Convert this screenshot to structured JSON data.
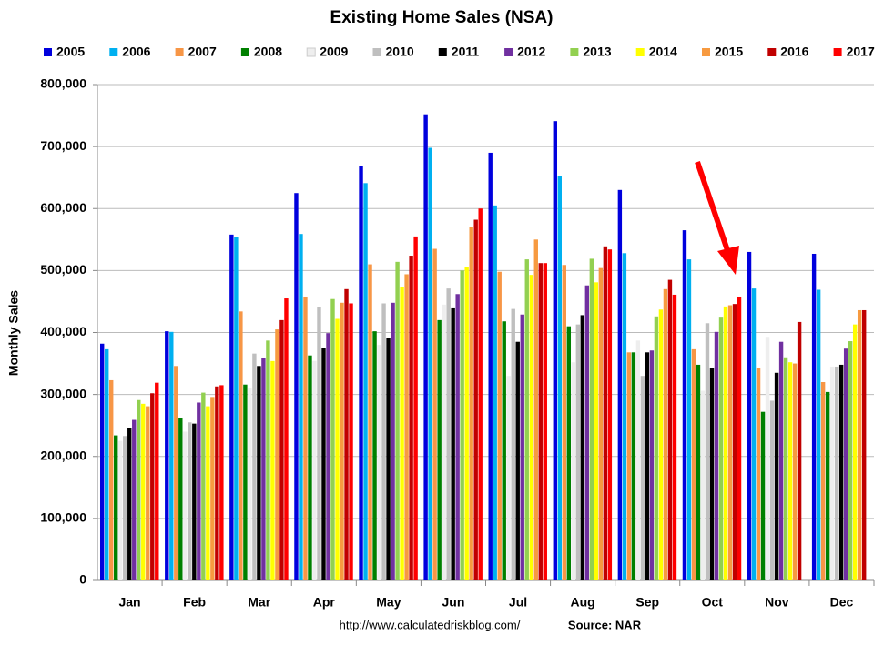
{
  "chart_data": {
    "type": "bar",
    "title": "Existing Home Sales (NSA)",
    "y_label": "Monthly Sales",
    "source_url": "http://www.calculatedriskblog.com/",
    "source": "Source: NAR",
    "categories": [
      "Jan",
      "Feb",
      "Mar",
      "Apr",
      "May",
      "Jun",
      "Jul",
      "Aug",
      "Sep",
      "Oct",
      "Nov",
      "Dec"
    ],
    "ylim": [
      0,
      800000
    ],
    "yticks": [
      0,
      {
        "value": 100000,
        "label": "100,000"
      },
      {
        "value": 200000,
        "label": "200,000"
      },
      {
        "value": 300000,
        "label": "300,000"
      },
      {
        "value": 400000,
        "label": "400,000"
      },
      {
        "value": 500000,
        "label": "500,000"
      },
      {
        "value": 600000,
        "label": "600,000"
      },
      {
        "value": 700000,
        "label": "700,000"
      },
      {
        "value": 800000,
        "label": "800,000"
      }
    ],
    "grid": true,
    "series": [
      {
        "name": "2005",
        "color": "#0000dd",
        "values": [
          382000,
          402000,
          558000,
          625000,
          668000,
          752000,
          690000,
          741000,
          630000,
          565000,
          530000,
          527000
        ]
      },
      {
        "name": "2006",
        "color": "#00b0f0",
        "values": [
          373000,
          401000,
          554000,
          559000,
          641000,
          698000,
          605000,
          653000,
          528000,
          518000,
          471000,
          469000
        ]
      },
      {
        "name": "2007",
        "color": "#f79646",
        "values": [
          323000,
          346000,
          434000,
          458000,
          510000,
          535000,
          498000,
          509000,
          368000,
          373000,
          343000,
          320000
        ]
      },
      {
        "name": "2008",
        "color": "#008000",
        "values": [
          234000,
          262000,
          316000,
          363000,
          402000,
          420000,
          418000,
          410000,
          368000,
          348000,
          272000,
          304000
        ]
      },
      {
        "name": "2009",
        "color": "#eeeeee",
        "values": [
          225000,
          240000,
          310000,
          354000,
          380000,
          445000,
          330000,
          352000,
          387000,
          306000,
          393000,
          345000
        ]
      },
      {
        "name": "2010",
        "color": "#bfbfbf",
        "values": [
          233000,
          255000,
          366000,
          441000,
          447000,
          471000,
          438000,
          413000,
          330000,
          415000,
          290000,
          345000
        ]
      },
      {
        "name": "2011",
        "color": "#000000",
        "values": [
          246000,
          253000,
          346000,
          375000,
          391000,
          439000,
          385000,
          428000,
          368000,
          342000,
          335000,
          348000
        ]
      },
      {
        "name": "2012",
        "color": "#7030a0",
        "values": [
          259000,
          287000,
          359000,
          399000,
          448000,
          462000,
          429000,
          476000,
          371000,
          401000,
          385000,
          374000
        ]
      },
      {
        "name": "2013",
        "color": "#92d050",
        "values": [
          291000,
          303000,
          387000,
          454000,
          514000,
          500000,
          518000,
          519000,
          426000,
          424000,
          360000,
          386000
        ]
      },
      {
        "name": "2014",
        "color": "#ffff00",
        "values": [
          285000,
          281000,
          354000,
          422000,
          474000,
          505000,
          493000,
          481000,
          437000,
          442000,
          352000,
          413000
        ]
      },
      {
        "name": "2015",
        "color": "#f79a40",
        "values": [
          281000,
          296000,
          405000,
          448000,
          494000,
          571000,
          550000,
          504000,
          470000,
          444000,
          350000,
          436000
        ]
      },
      {
        "name": "2016",
        "color": "#c00000",
        "values": [
          302000,
          313000,
          420000,
          470000,
          524000,
          582000,
          512000,
          539000,
          485000,
          446000,
          417000,
          436000
        ]
      },
      {
        "name": "2017",
        "color": "#ff0000",
        "values": [
          319000,
          315000,
          455000,
          447000,
          555000,
          600000,
          512000,
          534000,
          461000,
          458000,
          null,
          null
        ]
      }
    ]
  }
}
